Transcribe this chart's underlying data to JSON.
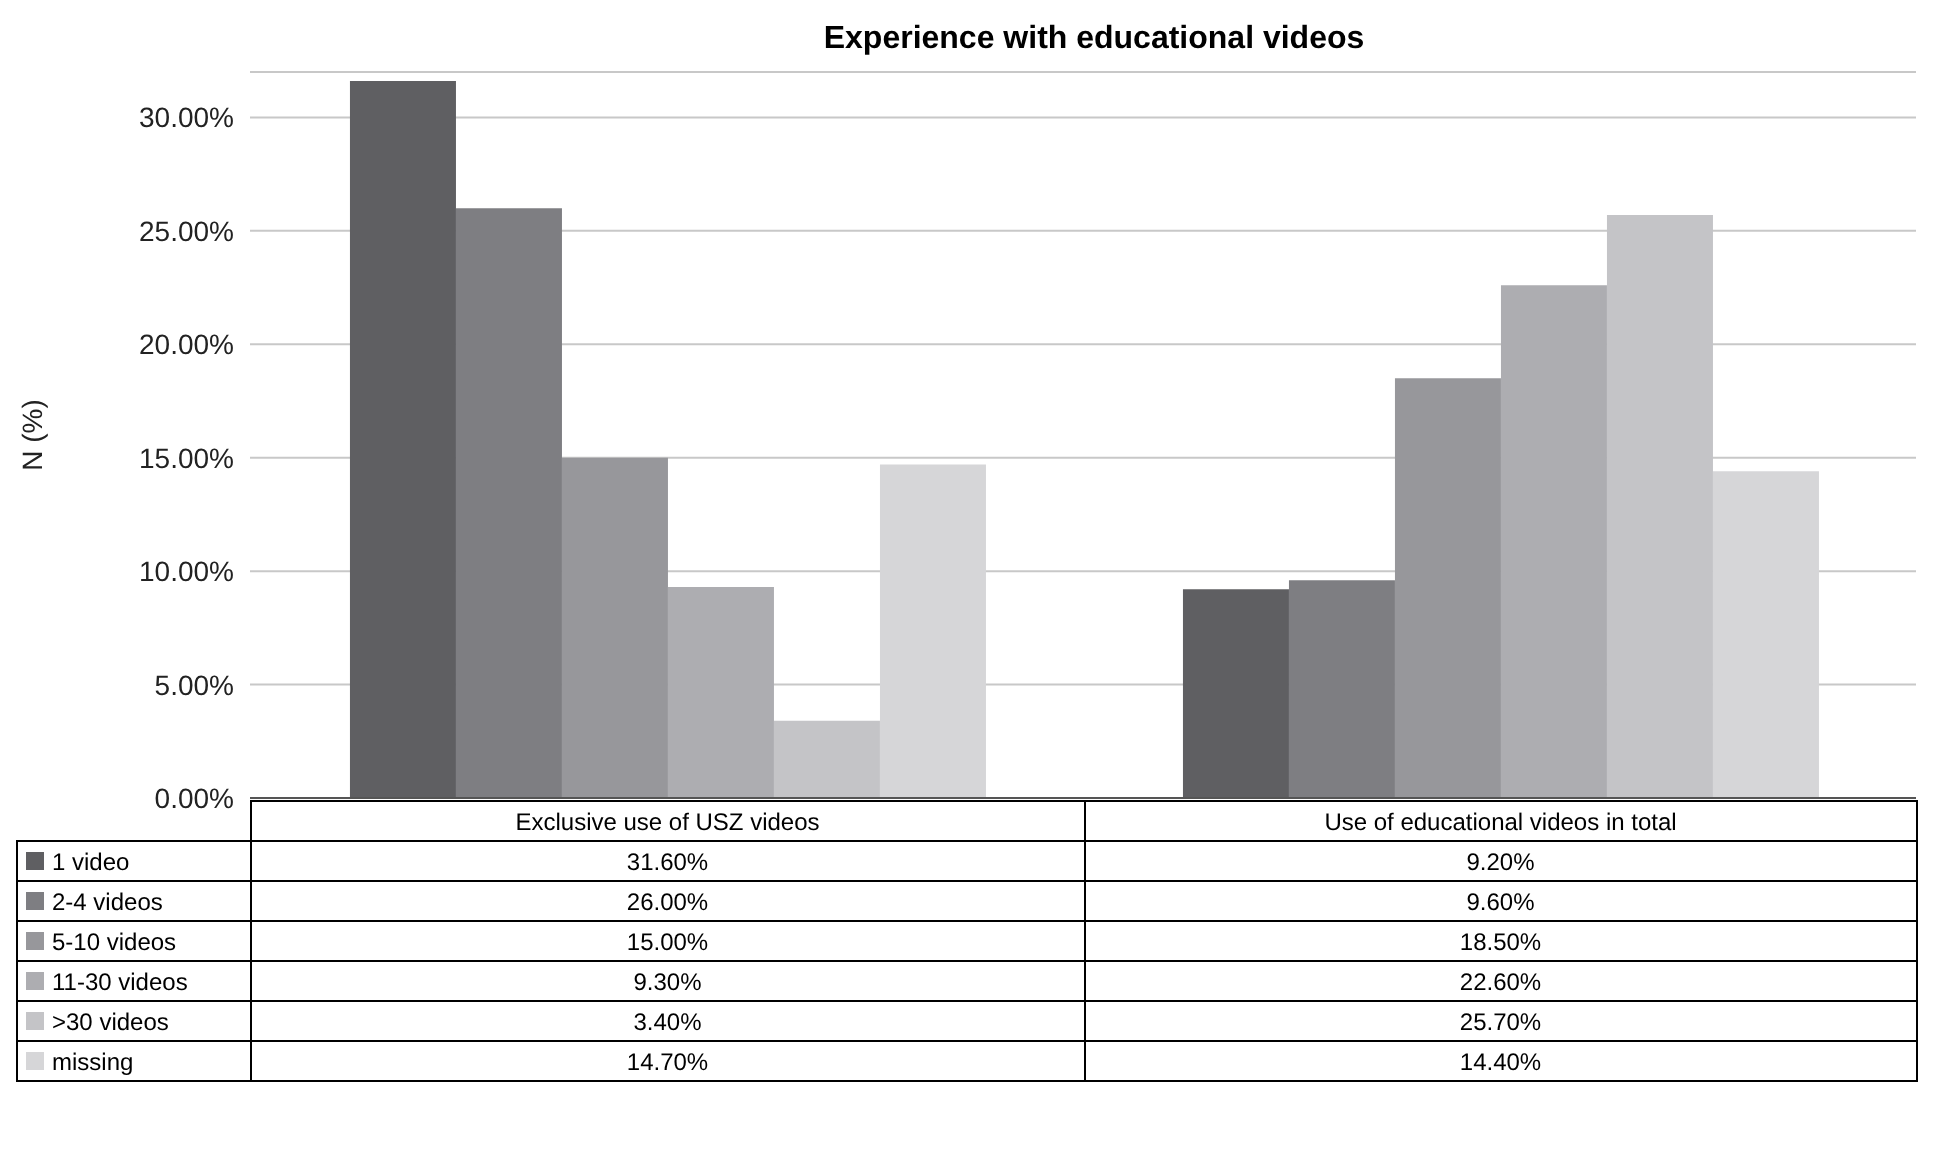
{
  "chart_data": {
    "type": "bar",
    "title": "Experience with educational videos",
    "ylabel": "N (%)",
    "categories": [
      "Exclusive use of USZ videos",
      "Use of educational videos in total"
    ],
    "series": [
      {
        "name": "1 video",
        "color": "#5f5f62",
        "values": [
          31.6,
          9.2
        ],
        "value_labels": [
          "31.60%",
          "9.20%"
        ]
      },
      {
        "name": "2-4 videos",
        "color": "#7e7e82",
        "values": [
          26.0,
          9.6
        ],
        "value_labels": [
          "26.00%",
          "9.60%"
        ]
      },
      {
        "name": "5-10 videos",
        "color": "#97979b",
        "values": [
          15.0,
          18.5
        ],
        "value_labels": [
          "15.00%",
          "18.50%"
        ]
      },
      {
        "name": "11-30 videos",
        "color": "#adadb1",
        "values": [
          9.3,
          22.6
        ],
        "value_labels": [
          "9.30%",
          "22.60%"
        ]
      },
      {
        "name": ">30 videos",
        "color": "#c4c4c7",
        "values": [
          3.4,
          25.7
        ],
        "value_labels": [
          "3.40%",
          "25.70%"
        ]
      },
      {
        "name": "missing",
        "color": "#d6d6d8",
        "values": [
          14.7,
          14.4
        ],
        "value_labels": [
          "14.70%",
          "14.40%"
        ]
      }
    ],
    "ylim": [
      0,
      32
    ],
    "yticks": [
      {
        "value": 0,
        "label": "0.00%"
      },
      {
        "value": 5,
        "label": "5.00%"
      },
      {
        "value": 10,
        "label": "10.00%"
      },
      {
        "value": 15,
        "label": "15.00%"
      },
      {
        "value": 20,
        "label": "20.00%"
      },
      {
        "value": 25,
        "label": "25.00%"
      },
      {
        "value": 30,
        "label": "30.00%"
      }
    ],
    "grid": "y",
    "legend": "bottom"
  }
}
